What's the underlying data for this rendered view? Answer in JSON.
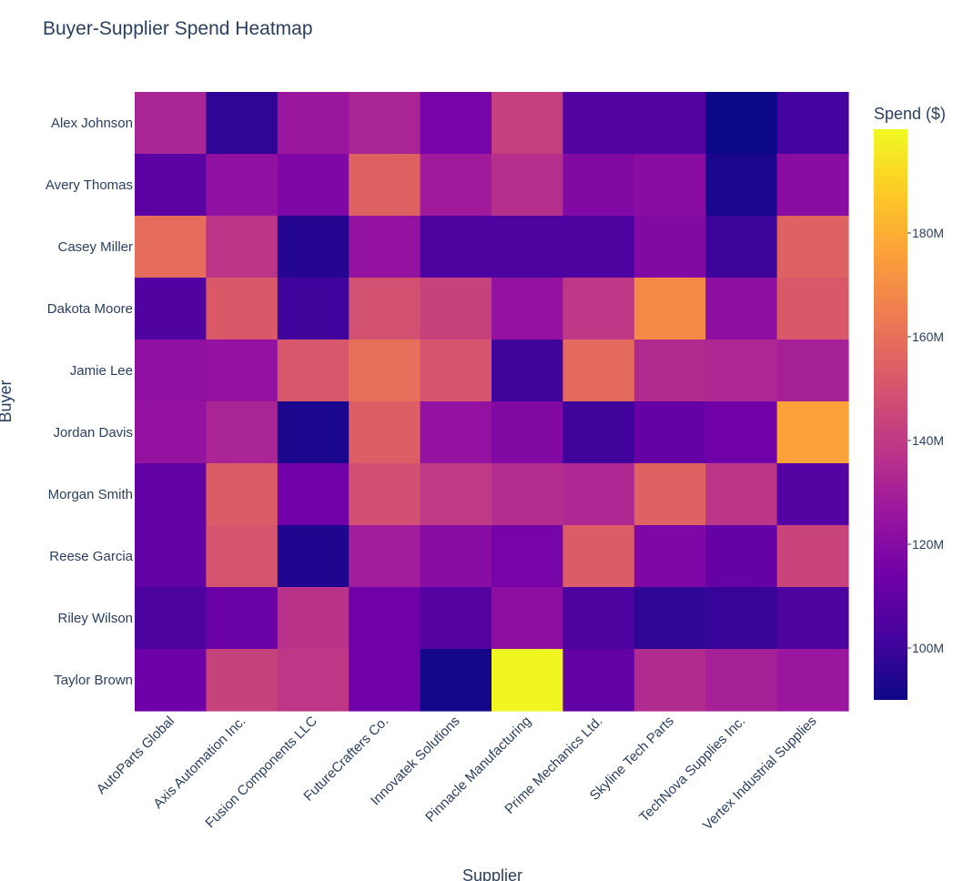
{
  "chart_data": {
    "type": "heatmap",
    "title": "Buyer-Supplier Spend Heatmap",
    "xlabel": "Supplier",
    "ylabel": "Buyer",
    "colorbar_title": "Spend ($)",
    "colorscale": [
      "#0d0887",
      "#46039f",
      "#7201a8",
      "#9c179e",
      "#bd3786",
      "#d8576b",
      "#ed7953",
      "#fb9f3a",
      "#fdca26",
      "#f0f921"
    ],
    "zlim": [
      90,
      200
    ],
    "colorbar_ticks": [
      {
        "value": 100,
        "label": "100M"
      },
      {
        "value": 120,
        "label": "120M"
      },
      {
        "value": 140,
        "label": "140M"
      },
      {
        "value": 160,
        "label": "160M"
      },
      {
        "value": 180,
        "label": "180M"
      }
    ],
    "suppliers": [
      "AutoParts Global",
      "Axis Automation Inc.",
      "Fusion Components LLC",
      "FutureCrafters Co.",
      "Innovatek Solutions",
      "Pinnacle Manufacturing",
      "Prime Mechanics Ltd.",
      "Skyline Tech Parts",
      "TechNova Supplies Inc.",
      "Vertex Industrial Supplies"
    ],
    "buyers": [
      "Alex Johnson",
      "Avery Thomas",
      "Casey Miller",
      "Dakota Moore",
      "Jamie Lee",
      "Jordan Davis",
      "Morgan Smith",
      "Reese Garcia",
      "Riley Wilson",
      "Taylor Brown"
    ],
    "values": [
      [
        132,
        97,
        126,
        132,
        116,
        142,
        106,
        106,
        90,
        102
      ],
      [
        108,
        123,
        118,
        155,
        128,
        136,
        119,
        121,
        93,
        121
      ],
      [
        159,
        138,
        95,
        124,
        104,
        104,
        104,
        119,
        100,
        155
      ],
      [
        105,
        152,
        101,
        149,
        143,
        124,
        139,
        169,
        122,
        152
      ],
      [
        123,
        124,
        151,
        160,
        150,
        101,
        158,
        134,
        133,
        130
      ],
      [
        124,
        132,
        93,
        154,
        124,
        119,
        101,
        111,
        114,
        176
      ],
      [
        110,
        153,
        114,
        148,
        140,
        135,
        133,
        155,
        138,
        106
      ],
      [
        110,
        150,
        94,
        129,
        121,
        116,
        153,
        118,
        111,
        144
      ],
      [
        104,
        112,
        137,
        114,
        107,
        122,
        104,
        97,
        99,
        104
      ],
      [
        113,
        143,
        139,
        114,
        91,
        199,
        110,
        134,
        130,
        126
      ]
    ]
  }
}
